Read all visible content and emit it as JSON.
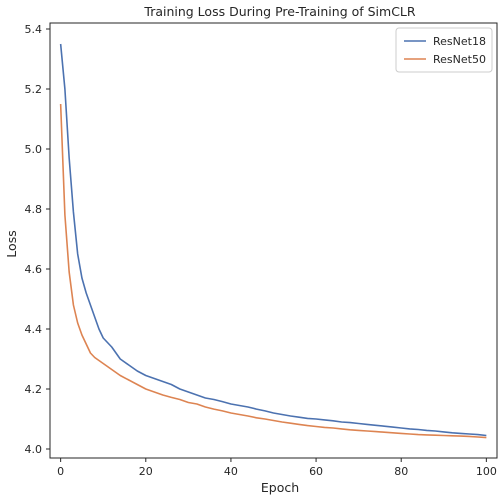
{
  "chart_data": {
    "type": "line",
    "title": "Training Loss During Pre-Training of SimCLR",
    "xlabel": "Epoch",
    "ylabel": "Loss",
    "xlim": [
      -2.5,
      102.5
    ],
    "ylim": [
      3.97,
      5.42
    ],
    "xticks": [
      0,
      20,
      40,
      60,
      80,
      100
    ],
    "yticks": [
      4.0,
      4.2,
      4.4,
      4.6,
      4.8,
      5.0,
      5.2,
      5.4
    ],
    "ytick_labels": [
      "4.0",
      "4.2",
      "4.4",
      "4.6",
      "4.8",
      "5.0",
      "5.2",
      "5.4"
    ],
    "grid": false,
    "legend_position": "top-right",
    "series": [
      {
        "name": "ResNet18",
        "color": "#4c72b0",
        "x": [
          0,
          1,
          2,
          3,
          4,
          5,
          6,
          7,
          8,
          9,
          10,
          12,
          14,
          16,
          18,
          20,
          22,
          24,
          26,
          28,
          30,
          32,
          34,
          36,
          38,
          40,
          42,
          44,
          46,
          48,
          50,
          52,
          54,
          56,
          58,
          60,
          62,
          64,
          66,
          68,
          70,
          72,
          74,
          76,
          78,
          80,
          82,
          84,
          86,
          88,
          90,
          92,
          94,
          96,
          98,
          100
        ],
        "values": [
          5.35,
          5.2,
          4.97,
          4.79,
          4.65,
          4.57,
          4.52,
          4.48,
          4.44,
          4.4,
          4.37,
          4.34,
          4.3,
          4.28,
          4.26,
          4.245,
          4.235,
          4.225,
          4.215,
          4.2,
          4.19,
          4.18,
          4.17,
          4.165,
          4.158,
          4.15,
          4.145,
          4.14,
          4.133,
          4.127,
          4.12,
          4.115,
          4.11,
          4.106,
          4.102,
          4.1,
          4.097,
          4.094,
          4.09,
          4.088,
          4.085,
          4.082,
          4.079,
          4.076,
          4.073,
          4.07,
          4.067,
          4.065,
          4.062,
          4.06,
          4.057,
          4.054,
          4.052,
          4.05,
          4.048,
          4.045
        ]
      },
      {
        "name": "ResNet50",
        "color": "#dd8452",
        "x": [
          0,
          1,
          2,
          3,
          4,
          5,
          6,
          7,
          8,
          9,
          10,
          12,
          14,
          16,
          18,
          20,
          22,
          24,
          26,
          28,
          30,
          32,
          34,
          36,
          38,
          40,
          42,
          44,
          46,
          48,
          50,
          52,
          54,
          56,
          58,
          60,
          62,
          64,
          66,
          68,
          70,
          72,
          74,
          76,
          78,
          80,
          82,
          84,
          86,
          88,
          90,
          92,
          94,
          96,
          98,
          100
        ],
        "values": [
          5.15,
          4.78,
          4.59,
          4.48,
          4.42,
          4.38,
          4.35,
          4.32,
          4.305,
          4.295,
          4.285,
          4.265,
          4.245,
          4.23,
          4.215,
          4.2,
          4.19,
          4.18,
          4.172,
          4.165,
          4.155,
          4.15,
          4.14,
          4.133,
          4.127,
          4.12,
          4.115,
          4.11,
          4.104,
          4.1,
          4.095,
          4.09,
          4.086,
          4.082,
          4.078,
          4.075,
          4.072,
          4.07,
          4.067,
          4.064,
          4.062,
          4.06,
          4.058,
          4.056,
          4.054,
          4.052,
          4.05,
          4.048,
          4.047,
          4.046,
          4.045,
          4.044,
          4.043,
          4.042,
          4.04,
          4.038
        ]
      }
    ]
  }
}
